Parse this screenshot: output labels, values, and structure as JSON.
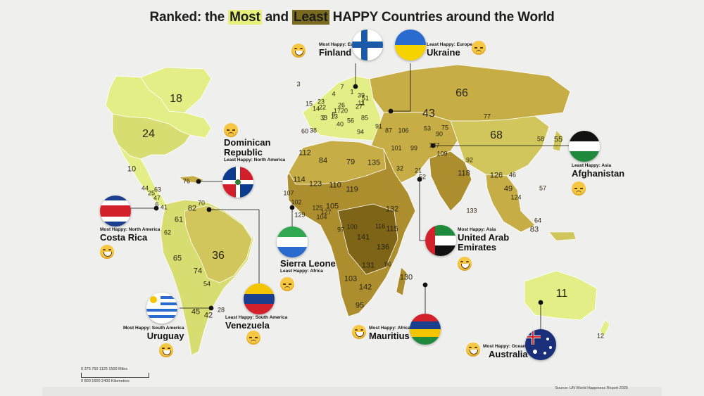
{
  "title": {
    "pre": "Ranked: the ",
    "most": "Most",
    "mid": " and ",
    "least": "Least",
    "post": " HAPPY Countries around the World"
  },
  "colors": {
    "most_happy": "#e3ef86",
    "high": "#d7dd70",
    "upper": "#d0c65c",
    "middle": "#c7ad45",
    "lower": "#ad8e2e",
    "least": "#7d6416",
    "nodata": "#ffffff",
    "sea": "#efefee"
  },
  "callouts": [
    {
      "id": "finland",
      "caption": "Most Happy: Europe",
      "name": "Finland",
      "mood": "happy"
    },
    {
      "id": "ukraine",
      "caption": "Least Happy: Europe",
      "name": "Ukraine",
      "mood": "sad"
    },
    {
      "id": "dominican",
      "caption": "Least Happy: North America",
      "name": "Dominican Republic",
      "mood": "sad"
    },
    {
      "id": "afghanistan",
      "caption": "Least Happy: Asia",
      "name": "Afghanistan",
      "mood": "sad"
    },
    {
      "id": "costa",
      "caption": "Most Happy: North America",
      "name": "Costa Rica",
      "mood": "happy"
    },
    {
      "id": "sierra",
      "caption": "Least Happy: Africa",
      "name": "Sierra Leone",
      "mood": "sad"
    },
    {
      "id": "uae",
      "caption": "Most Happy: Asia",
      "name": "United Arab Emirates",
      "mood": "happy"
    },
    {
      "id": "uruguay",
      "caption": "Most Happy: South America",
      "name": "Uruguay",
      "mood": "happy"
    },
    {
      "id": "venezuela",
      "caption": "Least Happy: South America",
      "name": "Venezuela",
      "mood": "sad"
    },
    {
      "id": "mauritius",
      "caption": "Most Happy: Africa",
      "name": "Mauritius",
      "mood": "happy"
    },
    {
      "id": "australia",
      "caption": "Most Happy: Oceania",
      "name": "Australia",
      "mood": "happy"
    }
  ],
  "ranks": [
    "18",
    "24",
    "10",
    "44",
    "63",
    "47",
    "6",
    "41",
    "25",
    "82",
    "70",
    "61",
    "62",
    "36",
    "65",
    "74",
    "54",
    "45",
    "42",
    "28",
    "76",
    "3",
    "7",
    "4",
    "1",
    "39",
    "11",
    "51",
    "15",
    "23",
    "14",
    "22",
    "26",
    "2",
    "13",
    "17",
    "20",
    "33",
    "40",
    "56",
    "85",
    "38",
    "60",
    "94",
    "91",
    "87",
    "106",
    "101",
    "99",
    "147",
    "109",
    "32",
    "21",
    "52",
    "135",
    "79",
    "84",
    "112",
    "114",
    "123",
    "110",
    "119",
    "107",
    "102",
    "125",
    "105",
    "129",
    "127",
    "104",
    "97",
    "100",
    "141",
    "132",
    "115",
    "136",
    "96",
    "131",
    "142",
    "103",
    "95",
    "130",
    "116",
    "66",
    "43",
    "53",
    "75",
    "90",
    "77",
    "68",
    "55",
    "58",
    "118",
    "92",
    "126",
    "46",
    "49",
    "124",
    "57",
    "133",
    "64",
    "83",
    "11",
    "12",
    "1",
    "27",
    "5"
  ],
  "scale": {
    "miles": "0  375  750  1125  1500 Miles",
    "km": "0    800    1600    2400 Kilometres"
  },
  "source": "Source: UN World Happiness Report 2025"
}
